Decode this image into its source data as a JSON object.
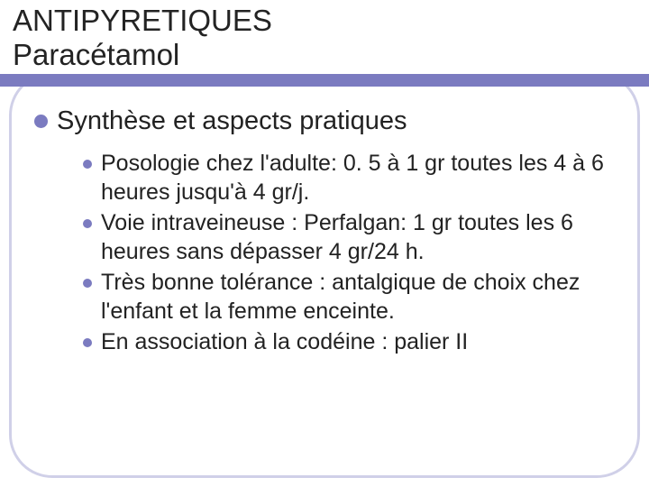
{
  "title": {
    "line1": "ANTIPYRETIQUES",
    "line2": "Paracétamol",
    "fontsize": 33,
    "color": "#232323"
  },
  "accent_bar": {
    "color": "#7b7bc0",
    "height": 14
  },
  "frame": {
    "border_color": "#d0d0e8",
    "border_width": 3,
    "radius": 48
  },
  "heading": {
    "text": "Synthèse  et aspects pratiques",
    "bullet_color": "#7b7bc0",
    "bullet_size": 15,
    "fontsize": 29
  },
  "items": [
    "Posologie chez l'adulte: 0. 5 à 1 gr toutes les 4 à 6 heures jusqu'à 4 gr/j.",
    "Voie intraveineuse : Perfalgan: 1 gr toutes les 6 heures sans dépasser 4 gr/24 h.",
    "Très bonne tolérance : antalgique de choix chez l'enfant et la femme enceinte.",
    "En association à la codéine : palier II"
  ],
  "item_style": {
    "bullet_color": "#7b7bc0",
    "bullet_size": 10,
    "fontsize": 25,
    "color": "#222222"
  },
  "background_color": "#ffffff"
}
